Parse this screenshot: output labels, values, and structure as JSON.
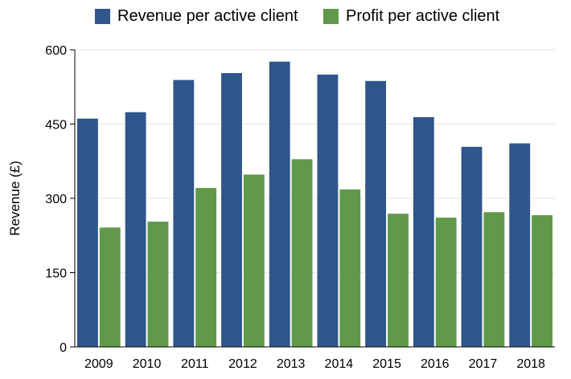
{
  "chart_data": {
    "type": "bar",
    "categories": [
      "2009",
      "2010",
      "2011",
      "2012",
      "2013",
      "2014",
      "2015",
      "2016",
      "2017",
      "2018"
    ],
    "series": [
      {
        "name": "Revenue per active client",
        "color": "#2f568c",
        "values": [
          461,
          474,
          539,
          553,
          576,
          550,
          537,
          464,
          404,
          411
        ]
      },
      {
        "name": "Profit per active client",
        "color": "#61994a",
        "values": [
          241,
          253,
          321,
          348,
          379,
          318,
          269,
          261,
          272,
          266
        ]
      }
    ],
    "title": "",
    "xlabel": "",
    "ylabel": "Revenue (£)",
    "ylim": [
      0,
      600
    ],
    "yticks": [
      0,
      150,
      300,
      450,
      600
    ],
    "grid": true,
    "legend_position": "top-center"
  }
}
